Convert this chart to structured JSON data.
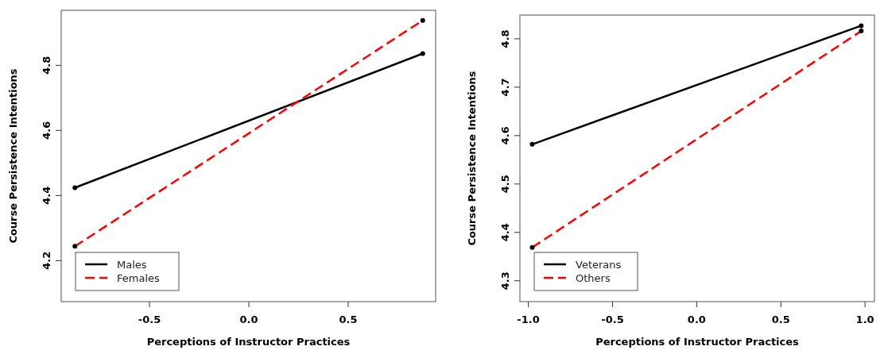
{
  "chart_data": [
    {
      "type": "line",
      "xlabel": "Perceptions of Instructor Practices",
      "ylabel": "Course Persistence Intentions",
      "xlim": [
        -0.944,
        0.94
      ],
      "xticks": [
        {
          "value": -0.5,
          "label": "-0.5"
        },
        {
          "value": 0,
          "label": "0.0"
        },
        {
          "value": 0.5,
          "label": "0.5"
        }
      ],
      "ylim": [
        4.074,
        4.969
      ],
      "yticks": [
        4.2,
        4.4,
        4.6,
        4.8
      ],
      "legend": "bottom left",
      "marker": "circle",
      "grid": false,
      "series": [
        {
          "name": "Males",
          "color": "#000000",
          "x": [
            -0.875,
            0.875
          ],
          "values": [
            4.424,
            4.836
          ],
          "line_style": "solid"
        },
        {
          "name": "Females",
          "color": "#ff0000",
          "x": [
            -0.875,
            0.875
          ],
          "values": [
            4.244,
            4.938
          ],
          "line_style": "dashed"
        }
      ]
    },
    {
      "type": "line",
      "xlabel": "Perceptions of Instructor Practices",
      "ylabel": "Course Persistence Intentions",
      "xlim": [
        -1.05,
        1.056
      ],
      "xticks": [
        {
          "value": -1,
          "label": "-1.0"
        },
        {
          "value": -0.5,
          "label": "-0.5"
        },
        {
          "value": 0,
          "label": "0.0"
        },
        {
          "value": 0.5,
          "label": "0.5"
        },
        {
          "value": 1,
          "label": "1.0"
        }
      ],
      "ylim": [
        4.257,
        4.849
      ],
      "yticks": [
        4.3,
        4.4,
        4.5,
        4.6,
        4.7,
        4.8
      ],
      "legend": "bottom left",
      "marker": "circle",
      "grid": false,
      "series": [
        {
          "name": "Veterans",
          "color": "#000000",
          "x": [
            -0.977,
            0.977
          ],
          "values": [
            4.582,
            4.827
          ],
          "line_style": "solid"
        },
        {
          "name": "Others",
          "color": "#ff0000",
          "x": [
            -0.977,
            0.977
          ],
          "values": [
            4.369,
            4.816
          ],
          "line_style": "dashed"
        }
      ]
    }
  ]
}
